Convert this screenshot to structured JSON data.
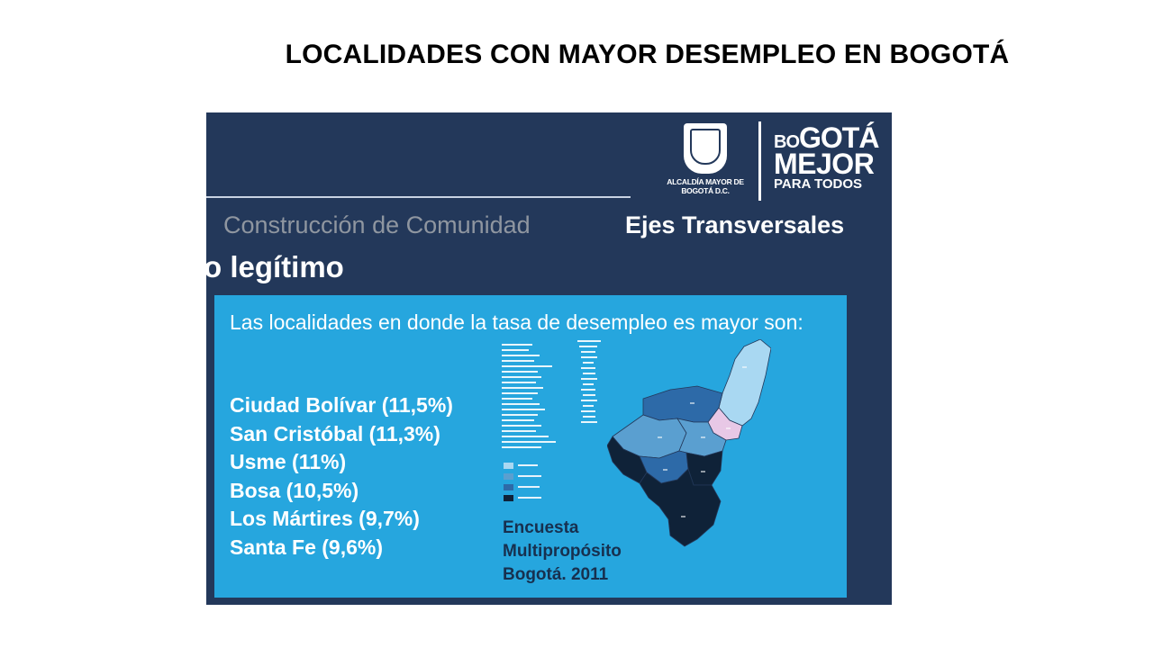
{
  "slide": {
    "title": "LOCALIDADES CON MAYOR DESEMPLEO EN BOGOTÁ"
  },
  "header": {
    "alcaldia_text": "ALCALDÍA MAYOR DE BOGOTÁ D.C.",
    "bogota_small": "BO",
    "bogota_big": "GOTÁ",
    "bogota_line2": "MEJOR",
    "bogota_line3": "PARA TODOS"
  },
  "nav": {
    "comunidad": "Construcción de Comunidad",
    "ejes": "Ejes Transversales"
  },
  "section": {
    "heading": "o legítimo"
  },
  "content": {
    "intro": "Las localidades en donde la tasa de desempleo es mayor son:",
    "localidades": [
      "Ciudad Bolívar (11,5%)",
      "San Cristóbal (11,3%)",
      "Usme (11%)",
      "Bosa (10,5%)",
      "Los Mártires (9,7%)",
      "Santa Fe (9,6%)"
    ],
    "source_lines": [
      "Encuesta",
      "Multipropósito",
      "Bogotá. 2011"
    ]
  },
  "colors": {
    "panel": "#23385a",
    "box": "#26a6de",
    "map_light": "#a9d8f2",
    "map_mid": "#5a9fd0",
    "map_dark": "#2d6aa8",
    "map_darkest": "#0f2238",
    "map_pink": "#e8c8e6"
  }
}
